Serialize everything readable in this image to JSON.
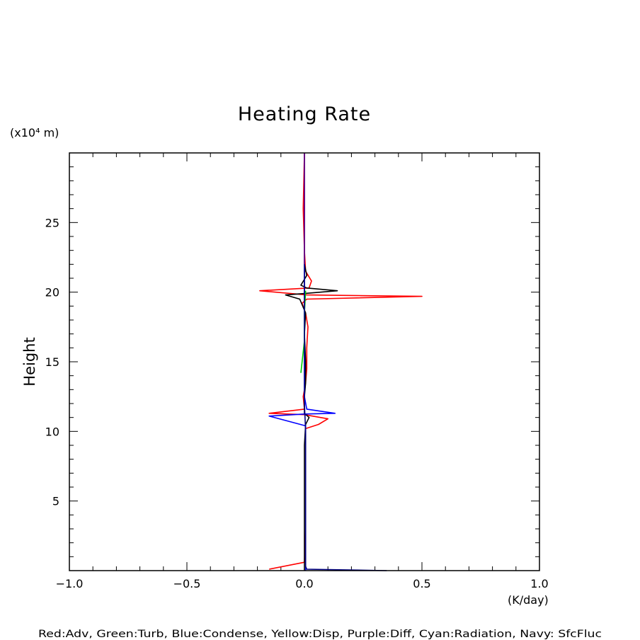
{
  "chart_data": {
    "type": "line",
    "title": "Heating Rate",
    "ylabel": "Height",
    "yunit": "(x10⁴ m)",
    "xunit": "(K/day)",
    "xlim": [
      -1.0,
      1.0
    ],
    "ylim": [
      0.0,
      30.0
    ],
    "xticks": [
      "-1.0",
      "-0.5",
      "0.0",
      "0.5",
      "1.0"
    ],
    "xtick_values": [
      -1.0,
      -0.5,
      0.0,
      0.5,
      1.0
    ],
    "yticks": [
      "5",
      "10",
      "15",
      "20",
      "25"
    ],
    "ytick_values": [
      5,
      10,
      15,
      20,
      25
    ],
    "footer": "Red:Adv, Green:Turb, Blue:Condense, Yellow:Disp, Purple:Diff, Cyan:Radiation, Navy: SfcFluc",
    "series": [
      {
        "color": "#ff0000",
        "points": [
          [
            -0.15,
            0.1
          ],
          [
            0.0,
            0.6
          ],
          [
            0.005,
            3
          ],
          [
            0.005,
            8
          ],
          [
            0.005,
            10.2
          ],
          [
            0.06,
            10.5
          ],
          [
            0.1,
            10.9
          ],
          [
            0.0,
            11.2
          ],
          [
            -0.15,
            11.3
          ],
          [
            0.0,
            11.6
          ],
          [
            -0.005,
            12.5
          ],
          [
            0.005,
            13.5
          ],
          [
            0.01,
            14.5
          ],
          [
            0.01,
            16.0
          ],
          [
            0.015,
            17.5
          ],
          [
            0.005,
            18.5
          ],
          [
            -0.01,
            19.2
          ],
          [
            0.01,
            19.5
          ],
          [
            0.5,
            19.7
          ],
          [
            0.01,
            19.8
          ],
          [
            -0.19,
            20.1
          ],
          [
            0.02,
            20.3
          ],
          [
            0.03,
            20.8
          ],
          [
            0.005,
            21.5
          ],
          [
            0.0,
            23
          ],
          [
            -0.005,
            26
          ],
          [
            0.0,
            30
          ]
        ]
      },
      {
        "color": "#000000",
        "points": [
          [
            0.0,
            0.0
          ],
          [
            0.0,
            9
          ],
          [
            0.005,
            10.5
          ],
          [
            0.02,
            11.0
          ],
          [
            0.0,
            11.3
          ],
          [
            0.0,
            12.5
          ],
          [
            0.005,
            13.5
          ],
          [
            0.005,
            15
          ],
          [
            0.0,
            17
          ],
          [
            0.005,
            18.5
          ],
          [
            -0.02,
            19.5
          ],
          [
            -0.08,
            19.8
          ],
          [
            0.0,
            19.9
          ],
          [
            0.14,
            20.1
          ],
          [
            0.01,
            20.3
          ],
          [
            -0.015,
            20.5
          ],
          [
            0.01,
            21.2
          ],
          [
            0.0,
            22
          ],
          [
            0.0,
            30
          ]
        ]
      },
      {
        "color": "#0000ff",
        "points": [
          [
            0.005,
            0.0
          ],
          [
            0.005,
            9
          ],
          [
            0.005,
            10.4
          ],
          [
            -0.15,
            11.1
          ],
          [
            0.0,
            11.25
          ],
          [
            0.13,
            11.3
          ],
          [
            0.01,
            11.6
          ],
          [
            0.0,
            12.5
          ],
          [
            0.0,
            30
          ]
        ]
      },
      {
        "color": "#00cc00",
        "points": [
          [
            -0.015,
            14.2
          ],
          [
            0.0,
            16.5
          ],
          [
            0.0,
            18.5
          ],
          [
            0.005,
            20.1
          ]
        ]
      },
      {
        "color": "#000080",
        "points": [
          [
            0.35,
            0.0
          ],
          [
            0.01,
            0.1
          ],
          [
            0.005,
            0.3
          ],
          [
            0.005,
            10
          ],
          [
            0.0,
            12
          ],
          [
            0.0,
            30
          ]
        ]
      },
      {
        "color": "#800080",
        "points": [
          [
            0.0,
            22
          ],
          [
            0.0,
            30
          ]
        ]
      }
    ]
  }
}
